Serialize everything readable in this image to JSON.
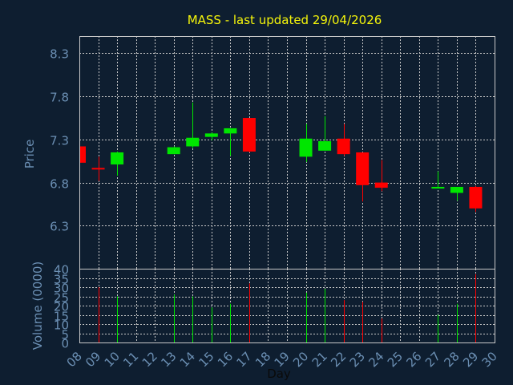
{
  "colors": {
    "background": "#0e1e30",
    "axis_text": "#6b8fb3",
    "title_text": "#f5f50a",
    "grid": "#c8c8c8",
    "up": "#00e600",
    "down": "#ff0000"
  },
  "chart_data": [
    {
      "type": "candlestick",
      "title": "MASS - last updated 29/04/2026",
      "ylabel": "Price",
      "ylim": [
        5.8,
        8.5
      ],
      "y_ticks": [
        "6.3",
        "6.8",
        "7.3",
        "7.8",
        "8.3"
      ],
      "grid": true,
      "points": [
        {
          "day": 8,
          "open": 7.22,
          "high": 7.22,
          "low": 7.02,
          "close": 7.03
        },
        {
          "day": 9,
          "open": 6.97,
          "high": 7.1,
          "low": 6.82,
          "close": 6.96
        },
        {
          "day": 10,
          "open": 7.01,
          "high": 7.16,
          "low": 6.88,
          "close": 7.15
        },
        {
          "day": 13,
          "open": 7.13,
          "high": 7.22,
          "low": 7.13,
          "close": 7.21
        },
        {
          "day": 14,
          "open": 7.22,
          "high": 7.73,
          "low": 7.2,
          "close": 7.32
        },
        {
          "day": 15,
          "open": 7.33,
          "high": 7.38,
          "low": 7.29,
          "close": 7.37
        },
        {
          "day": 16,
          "open": 7.37,
          "high": 7.43,
          "low": 7.11,
          "close": 7.43
        },
        {
          "day": 17,
          "open": 7.55,
          "high": 7.55,
          "low": 7.15,
          "close": 7.16
        },
        {
          "day": 20,
          "open": 7.1,
          "high": 7.48,
          "low": 7.04,
          "close": 7.31
        },
        {
          "day": 21,
          "open": 7.17,
          "high": 7.57,
          "low": 7.17,
          "close": 7.28
        },
        {
          "day": 22,
          "open": 7.31,
          "high": 7.48,
          "low": 7.11,
          "close": 7.13
        },
        {
          "day": 23,
          "open": 7.15,
          "high": 7.15,
          "low": 6.58,
          "close": 6.77
        },
        {
          "day": 24,
          "open": 6.8,
          "high": 7.06,
          "low": 6.7,
          "close": 6.74
        },
        {
          "day": 27,
          "open": 6.73,
          "high": 6.93,
          "low": 6.73,
          "close": 6.75
        },
        {
          "day": 28,
          "open": 6.68,
          "high": 6.75,
          "low": 6.59,
          "close": 6.75
        },
        {
          "day": 29,
          "open": 6.75,
          "high": 6.76,
          "low": 6.46,
          "close": 6.5
        }
      ]
    },
    {
      "type": "bar",
      "xlabel": "Day",
      "ylabel": "Volume (0000)",
      "ylim": [
        0,
        40
      ],
      "y_ticks": [
        "0",
        "5",
        "10",
        "15",
        "20",
        "25",
        "30",
        "35",
        "40"
      ],
      "x_ticks": [
        "08",
        "09",
        "10",
        "11",
        "12",
        "13",
        "14",
        "15",
        "16",
        "17",
        "18",
        "19",
        "20",
        "21",
        "22",
        "23",
        "24",
        "25",
        "26",
        "27",
        "28",
        "29",
        "30"
      ],
      "x_tick_values": [
        8,
        9,
        10,
        11,
        12,
        13,
        14,
        15,
        16,
        17,
        18,
        19,
        20,
        21,
        22,
        23,
        24,
        25,
        26,
        27,
        28,
        29,
        30
      ],
      "grid": true,
      "bars": [
        {
          "day": 9,
          "value": 30,
          "direction": "down"
        },
        {
          "day": 10,
          "value": 25,
          "direction": "up"
        },
        {
          "day": 13,
          "value": 26,
          "direction": "up"
        },
        {
          "day": 14,
          "value": 25,
          "direction": "up"
        },
        {
          "day": 15,
          "value": 19,
          "direction": "up"
        },
        {
          "day": 16,
          "value": 21,
          "direction": "up"
        },
        {
          "day": 17,
          "value": 32,
          "direction": "down"
        },
        {
          "day": 20,
          "value": 27,
          "direction": "up"
        },
        {
          "day": 21,
          "value": 29,
          "direction": "up"
        },
        {
          "day": 22,
          "value": 23,
          "direction": "down"
        },
        {
          "day": 23,
          "value": 22,
          "direction": "down"
        },
        {
          "day": 24,
          "value": 13,
          "direction": "down"
        },
        {
          "day": 27,
          "value": 15,
          "direction": "up"
        },
        {
          "day": 28,
          "value": 21,
          "direction": "up"
        },
        {
          "day": 29,
          "value": 37,
          "direction": "down"
        }
      ]
    }
  ]
}
